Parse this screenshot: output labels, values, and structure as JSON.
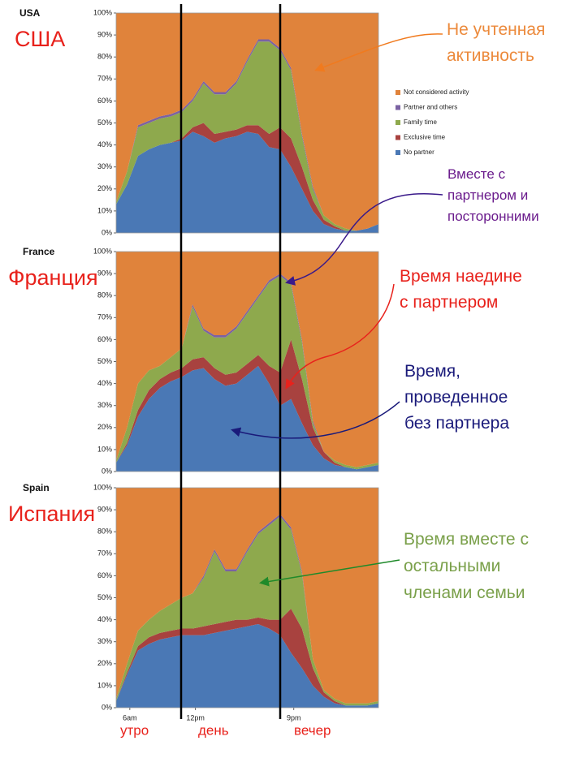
{
  "chart_data": [
    {
      "type": "area",
      "title": "USA",
      "subtitle": "США",
      "stacked": true,
      "legend": "right",
      "x": [
        4.75,
        5.75,
        6.75,
        7.75,
        8.75,
        9.75,
        10.75,
        11.75,
        12.75,
        13.75,
        14.75,
        15.75,
        16.75,
        17.75,
        18.75,
        19.75,
        20.75,
        21.75,
        22.75,
        23.75,
        24.75,
        25.75,
        26.75,
        27.75,
        28.75
      ],
      "xlim": [
        4.75,
        28.75
      ],
      "ylim": [
        0,
        100
      ],
      "yticks": [
        {
          "value": 0,
          "label": "0%"
        },
        {
          "value": 10,
          "label": "10%"
        },
        {
          "value": 20,
          "label": "20%"
        },
        {
          "value": 30,
          "label": "30%"
        },
        {
          "value": 40,
          "label": "40%"
        },
        {
          "value": 50,
          "label": "50%"
        },
        {
          "value": 60,
          "label": "60%"
        },
        {
          "value": 70,
          "label": "70%"
        },
        {
          "value": 80,
          "label": "80%"
        },
        {
          "value": 90,
          "label": "90%"
        },
        {
          "value": 100,
          "label": "100%"
        }
      ],
      "series": [
        {
          "name": "No partner",
          "color": "#4a78b5",
          "values": [
            13,
            22,
            35,
            38,
            40,
            41,
            42,
            46,
            44,
            41,
            43,
            44,
            46,
            45,
            39,
            38,
            30,
            20,
            10,
            4,
            2,
            1,
            1,
            2,
            4
          ]
        },
        {
          "name": "Exclusive time",
          "color": "#a8423f",
          "values": [
            0,
            0,
            0,
            0,
            0,
            0,
            1,
            2,
            6,
            4,
            3,
            3,
            3,
            4,
            6,
            10,
            13,
            10,
            5,
            2,
            1,
            0,
            0,
            0,
            0
          ]
        },
        {
          "name": "Family time",
          "color": "#8ea94d",
          "values": [
            1,
            6,
            13,
            12,
            12,
            12,
            12,
            12,
            18,
            18,
            17,
            21,
            29,
            38,
            42,
            35,
            31,
            14,
            5,
            2,
            1,
            1,
            0,
            0,
            0
          ]
        },
        {
          "name": "Partner and others",
          "color": "#7b62a3",
          "values": [
            0,
            0,
            1,
            1,
            1,
            1,
            1,
            1,
            1,
            1,
            1,
            1,
            1,
            1,
            1,
            1,
            1,
            1,
            1,
            0,
            0,
            0,
            0,
            0,
            0
          ]
        },
        {
          "name": "Not considered activity",
          "color": "#e0833b",
          "values": [
            86,
            72,
            51,
            49,
            47,
            46,
            44,
            39,
            31,
            36,
            36,
            31,
            21,
            12,
            12,
            16,
            25,
            55,
            79,
            92,
            96,
            98,
            99,
            98,
            96
          ]
        }
      ]
    },
    {
      "type": "area",
      "title": "France",
      "subtitle": "Франция",
      "stacked": true,
      "x": [
        4.75,
        5.75,
        6.75,
        7.75,
        8.75,
        9.75,
        10.75,
        11.75,
        12.75,
        13.75,
        14.75,
        15.75,
        16.75,
        17.75,
        18.75,
        19.75,
        20.75,
        21.75,
        22.75,
        23.75,
        24.75,
        25.75,
        26.75,
        27.75,
        28.75
      ],
      "xlim": [
        4.75,
        28.75
      ],
      "ylim": [
        0,
        100
      ],
      "yticks": [
        {
          "value": 0,
          "label": "0%"
        },
        {
          "value": 10,
          "label": "10%"
        },
        {
          "value": 20,
          "label": "20%"
        },
        {
          "value": 30,
          "label": "30%"
        },
        {
          "value": 40,
          "label": "40%"
        },
        {
          "value": 50,
          "label": "50%"
        },
        {
          "value": 60,
          "label": "60%"
        },
        {
          "value": 70,
          "label": "70%"
        },
        {
          "value": 80,
          "label": "80%"
        },
        {
          "value": 90,
          "label": "90%"
        },
        {
          "value": 100,
          "label": "100%"
        }
      ],
      "series": [
        {
          "color": "#4a78b5",
          "values": [
            4,
            12,
            25,
            33,
            38,
            41,
            43,
            46,
            47,
            42,
            39,
            40,
            44,
            48,
            40,
            30,
            33,
            22,
            12,
            6,
            3,
            2,
            1,
            2,
            3
          ]
        },
        {
          "color": "#a8423f",
          "values": [
            0,
            1,
            3,
            4,
            4,
            4,
            4,
            5,
            5,
            5,
            5,
            5,
            5,
            5,
            8,
            15,
            27,
            20,
            8,
            3,
            1,
            0,
            0,
            0,
            0
          ]
        },
        {
          "color": "#8ea94d",
          "values": [
            1,
            7,
            12,
            9,
            6,
            7,
            9,
            24,
            12,
            14,
            17,
            20,
            23,
            26,
            38,
            44,
            25,
            17,
            2,
            0,
            1,
            1,
            1,
            1,
            1
          ]
        },
        {
          "color": "#7b62a3",
          "values": [
            0,
            0,
            0,
            0,
            0,
            0,
            0,
            1,
            1,
            1,
            1,
            1,
            1,
            1,
            1,
            1,
            1,
            1,
            1,
            0,
            0,
            0,
            0,
            0,
            0
          ]
        },
        {
          "color": "#e0833b",
          "values": [
            95,
            80,
            60,
            54,
            52,
            48,
            44,
            24,
            35,
            38,
            38,
            34,
            27,
            20,
            13,
            10,
            14,
            40,
            77,
            91,
            95,
            97,
            98,
            97,
            96
          ]
        }
      ]
    },
    {
      "type": "area",
      "title": "Spain",
      "subtitle": "Испания",
      "stacked": true,
      "x": [
        4.75,
        5.75,
        6.75,
        7.75,
        8.75,
        9.75,
        10.75,
        11.75,
        12.75,
        13.75,
        14.75,
        15.75,
        16.75,
        17.75,
        18.75,
        19.75,
        20.75,
        21.75,
        22.75,
        23.75,
        24.75,
        25.75,
        26.75,
        27.75,
        28.75
      ],
      "xlim": [
        4.75,
        28.75
      ],
      "ylim": [
        0,
        100
      ],
      "xticks": [
        {
          "value": 6,
          "label": "6am"
        },
        {
          "value": 12,
          "label": "12pm"
        },
        {
          "value": 21,
          "label": "9pm"
        }
      ],
      "yticks": [
        {
          "value": 0,
          "label": "0%"
        },
        {
          "value": 10,
          "label": "10%"
        },
        {
          "value": 20,
          "label": "20%"
        },
        {
          "value": 30,
          "label": "30%"
        },
        {
          "value": 40,
          "label": "40%"
        },
        {
          "value": 50,
          "label": "50%"
        },
        {
          "value": 60,
          "label": "60%"
        },
        {
          "value": 70,
          "label": "70%"
        },
        {
          "value": 80,
          "label": "80%"
        },
        {
          "value": 90,
          "label": "90%"
        },
        {
          "value": 100,
          "label": "100%"
        }
      ],
      "series": [
        {
          "color": "#4a78b5",
          "values": [
            3,
            15,
            26,
            29,
            31,
            32,
            33,
            33,
            33,
            34,
            35,
            36,
            37,
            38,
            36,
            33,
            25,
            18,
            10,
            5,
            2,
            1,
            1,
            1,
            2
          ]
        },
        {
          "color": "#a8423f",
          "values": [
            0,
            1,
            2,
            3,
            3,
            3,
            3,
            3,
            4,
            4,
            4,
            4,
            3,
            3,
            4,
            7,
            20,
            18,
            8,
            2,
            1,
            0,
            0,
            0,
            0
          ]
        },
        {
          "color": "#8ea94d",
          "values": [
            1,
            4,
            7,
            8,
            10,
            12,
            14,
            16,
            22,
            33,
            23,
            22,
            31,
            38,
            43,
            47,
            36,
            25,
            4,
            1,
            1,
            1,
            1,
            1,
            1
          ]
        },
        {
          "color": "#7b62a3",
          "values": [
            0,
            0,
            0,
            0,
            0,
            0,
            0,
            0,
            1,
            1,
            1,
            1,
            1,
            1,
            1,
            1,
            1,
            1,
            0,
            0,
            0,
            0,
            0,
            0,
            0
          ]
        },
        {
          "color": "#e0833b",
          "values": [
            96,
            80,
            65,
            60,
            56,
            53,
            50,
            48,
            40,
            28,
            37,
            37,
            28,
            20,
            16,
            12,
            18,
            38,
            78,
            92,
            96,
            98,
            98,
            98,
            97
          ]
        }
      ]
    }
  ],
  "period_labels": [
    "утро",
    "день",
    "вечер"
  ],
  "annotations": [
    {
      "lines": [
        "Не учтенная",
        "активность"
      ]
    },
    {
      "lines": [
        "Вместе с",
        "партнером и",
        "посторонними"
      ]
    },
    {
      "lines": [
        "Время наедине",
        "с партнером"
      ]
    },
    {
      "lines": [
        "Время,",
        "проведенное",
        "без партнера"
      ]
    },
    {
      "lines": [
        "Время вместе с",
        "остальными",
        "членами семьи"
      ]
    }
  ]
}
